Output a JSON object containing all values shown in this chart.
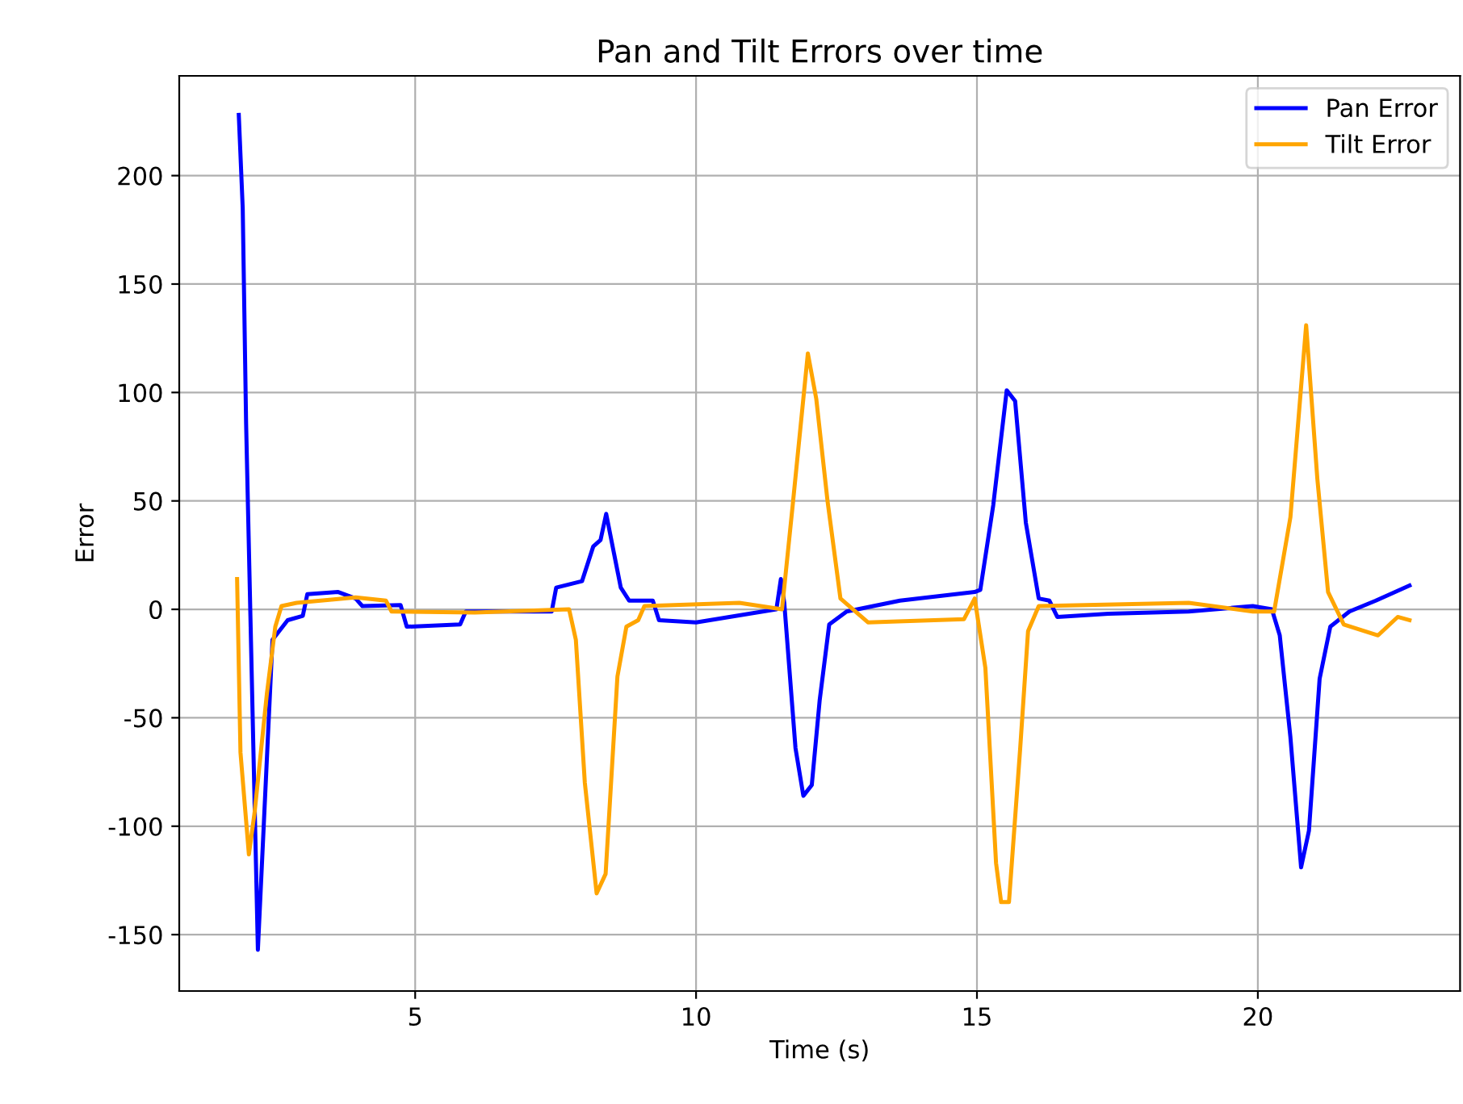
{
  "chart_data": {
    "type": "line",
    "title": "Pan and Tilt Errors over time",
    "xlabel": "Time (s)",
    "ylabel": "Error",
    "xlim": [
      0.8,
      23.6
    ],
    "ylim": [
      -176,
      246
    ],
    "xticks": [
      5,
      10,
      15,
      20
    ],
    "yticks": [
      -150,
      -100,
      -50,
      0,
      50,
      100,
      150,
      200
    ],
    "grid": true,
    "legend": "top right",
    "series": [
      {
        "name": "Pan Error",
        "color": "#0000ff",
        "x": [
          1.86,
          1.93,
          1.99,
          2.2,
          2.46,
          2.73,
          3.0,
          3.08,
          3.63,
          3.94,
          4.06,
          4.74,
          4.85,
          5.8,
          5.9,
          7.43,
          7.51,
          7.97,
          8.17,
          8.3,
          8.4,
          8.66,
          8.81,
          9.23,
          9.34,
          10.0,
          11.43,
          11.51,
          11.57,
          11.77,
          11.91,
          12.06,
          12.2,
          12.37,
          12.68,
          13.63,
          14.96,
          15.06,
          15.29,
          15.53,
          15.68,
          15.87,
          16.1,
          16.29,
          16.43,
          17.34,
          18.77,
          19.91,
          20.25,
          20.39,
          20.58,
          20.77,
          20.91,
          21.1,
          21.29,
          21.63,
          22.1,
          22.7
        ],
        "values": [
          228,
          185,
          86,
          -157,
          -14,
          -5,
          -3,
          7,
          8,
          5,
          1.5,
          2,
          -8,
          -7,
          -1,
          -1,
          10,
          13,
          29,
          32,
          44,
          10,
          4,
          4,
          -5,
          -6,
          0,
          14,
          3,
          -64,
          -86,
          -81,
          -42,
          -7,
          -1,
          4,
          8,
          9,
          48,
          101,
          96,
          40,
          5,
          4,
          -3.5,
          -2,
          -1,
          1.5,
          0,
          -12,
          -59,
          -119,
          -102,
          -32,
          -8,
          -1,
          4,
          11
        ]
      },
      {
        "name": "Tilt Error",
        "color": "#ffa500",
        "x": [
          1.83,
          1.89,
          2.04,
          2.14,
          2.36,
          2.51,
          2.62,
          2.89,
          3.94,
          4.48,
          4.58,
          6.06,
          7.74,
          7.86,
          8.02,
          8.23,
          8.39,
          8.6,
          8.76,
          8.97,
          9.08,
          10.77,
          11.53,
          11.72,
          11.99,
          12.14,
          12.34,
          12.57,
          13.06,
          14.77,
          14.96,
          15.15,
          15.34,
          15.43,
          15.57,
          15.77,
          15.91,
          16.1,
          18.77,
          19.91,
          20.29,
          20.58,
          20.86,
          21.06,
          21.25,
          21.53,
          22.14,
          22.49,
          22.7
        ],
        "values": [
          14,
          -66,
          -113,
          -94,
          -39,
          -8,
          1.5,
          3,
          5.5,
          4,
          -1,
          -1.5,
          0,
          -14,
          -80,
          -131,
          -122,
          -31,
          -8,
          -5,
          1.5,
          3,
          0,
          48,
          118,
          97,
          50,
          5,
          -6,
          -4.5,
          5,
          -27,
          -117,
          -135,
          -135,
          -64,
          -10,
          1.5,
          3,
          -1,
          -1,
          42.5,
          131,
          60,
          8,
          -7,
          -12,
          -3.5,
          -5
        ]
      }
    ]
  }
}
